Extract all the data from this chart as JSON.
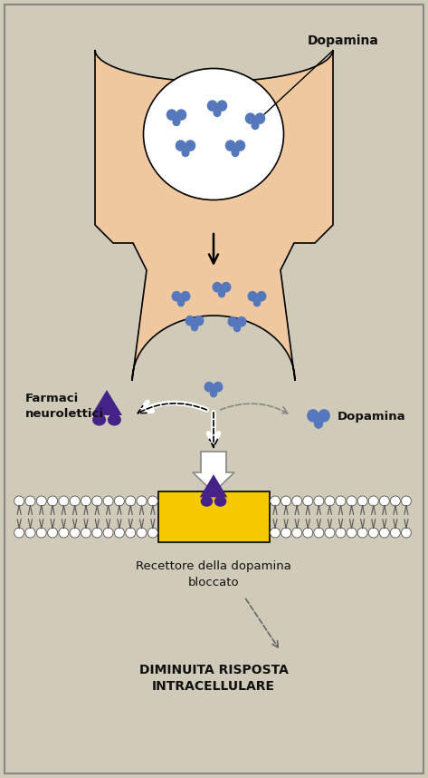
{
  "bg_color": "#d0cab8",
  "skin_color": "#f0c8a0",
  "skin_edge": "#111111",
  "dopamine_color": "#5577bb",
  "neuroleptic_color": "#442288",
  "receptor_color": "#f5c800",
  "text_color": "#111111",
  "title_dopamina": "Dopamina",
  "label_farmaci": "Farmaci\nneurolettici",
  "label_dopamina2": "Dopamina",
  "label_recettore": "Recettore della dopamina\nbloccato",
  "label_risposta": "DIMINUITA RISPOSTA\nINTRACELLULARE"
}
